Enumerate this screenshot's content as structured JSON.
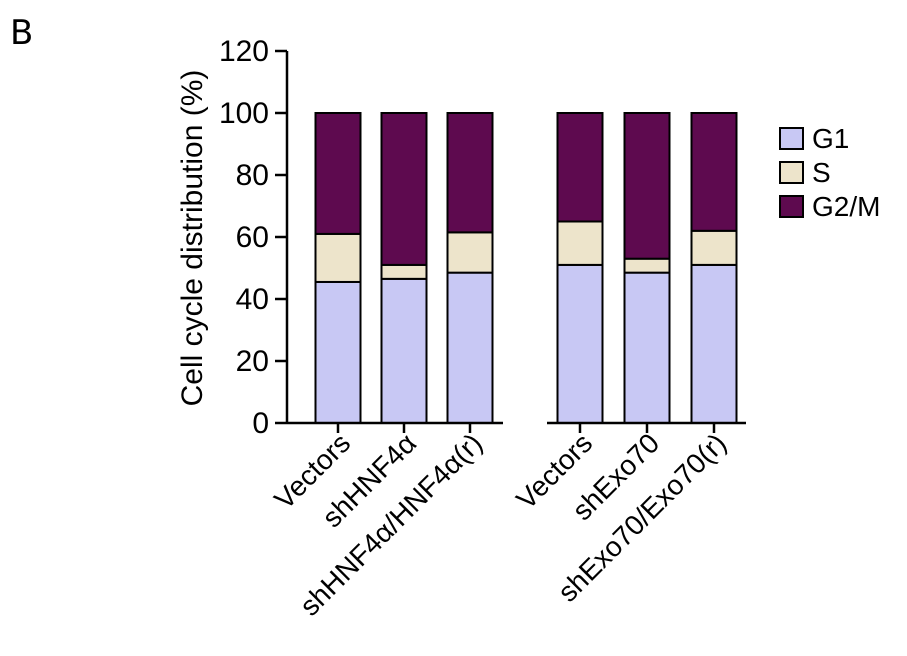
{
  "panel_label": "B",
  "chart_data": {
    "type": "bar",
    "stacked": true,
    "title": "",
    "xlabel": "",
    "ylabel": "Cell cycle distribution (%)",
    "ylim": [
      0,
      120
    ],
    "yticks": [
      0,
      20,
      40,
      60,
      80,
      100,
      120
    ],
    "ytick_labels": [
      "0",
      "20",
      "40",
      "60",
      "80",
      "100",
      "120"
    ],
    "categories": [
      "Vectors",
      "shHNF4α",
      "shHNF4α/HNF4α(r)",
      "Vectors",
      "shExo70",
      "shExo70/Exo70(r)"
    ],
    "groups": [
      [
        0,
        1,
        2
      ],
      [
        3,
        4,
        5
      ]
    ],
    "series": [
      {
        "name": "G1",
        "color": "#c8c8f4",
        "values": [
          45.5,
          46.5,
          48.5,
          51,
          48.5,
          51
        ]
      },
      {
        "name": "S",
        "color": "#ede4cb",
        "values": [
          15.5,
          4.5,
          13,
          14,
          4.5,
          11
        ]
      },
      {
        "name": "G2/M",
        "color": "#5e0a4f",
        "values": [
          39,
          49,
          38.5,
          35,
          47,
          38
        ]
      }
    ],
    "legend_position": "right",
    "grid": false
  }
}
